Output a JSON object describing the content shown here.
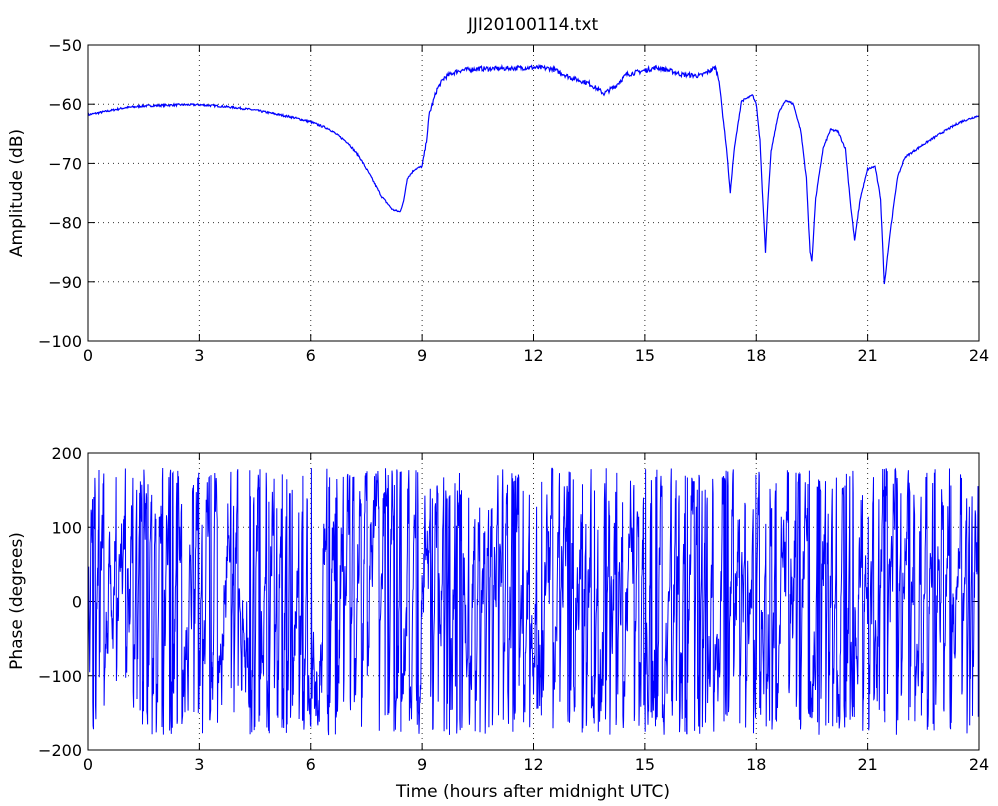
{
  "chart_data": [
    {
      "type": "line",
      "title": "JJI20100114.txt",
      "xlabel": "",
      "ylabel": "Amplitude (dB)",
      "xlim": [
        0,
        24
      ],
      "ylim": [
        -100,
        -50
      ],
      "xticks": [
        "0",
        "3",
        "6",
        "9",
        "12",
        "15",
        "18",
        "21",
        "24"
      ],
      "yticks": [
        "−50",
        "−60",
        "−70",
        "−80",
        "−90",
        "−100"
      ],
      "ytick_values": [
        -50,
        -60,
        -70,
        -80,
        -90,
        -100
      ],
      "grid": true,
      "line_color": "#0000ff",
      "series": [
        {
          "x": [
            0,
            0.5,
            1,
            1.5,
            2,
            2.5,
            3,
            3.5,
            4,
            4.5,
            5,
            5.5,
            6,
            6.5,
            7,
            7.3,
            7.6,
            7.9,
            8.2,
            8.4,
            8.5,
            8.6,
            8.8,
            9.0,
            9.1,
            9.2,
            9.4,
            9.6,
            9.8,
            10,
            10.5,
            11,
            11.5,
            12,
            12.5,
            13,
            13.5,
            13.9,
            14.2,
            14.5,
            15,
            15.3,
            15.6,
            16,
            16.5,
            16.7,
            16.9,
            17.0,
            17.1,
            17.2,
            17.3,
            17.4,
            17.6,
            17.9,
            18.0,
            18.1,
            18.2,
            18.25,
            18.3,
            18.4,
            18.6,
            18.8,
            19.0,
            19.2,
            19.35,
            19.45,
            19.5,
            19.6,
            19.8,
            20.0,
            20.2,
            20.4,
            20.55,
            20.65,
            20.8,
            21.0,
            21.2,
            21.35,
            21.45,
            21.6,
            21.8,
            22.0,
            22.5,
            23,
            23.5,
            24
          ],
          "y": [
            -61.8,
            -61.2,
            -60.6,
            -60.3,
            -60.2,
            -60.1,
            -60.1,
            -60.3,
            -60.6,
            -61.0,
            -61.6,
            -62.2,
            -63.0,
            -64.2,
            -66.5,
            -68.8,
            -72.0,
            -75.5,
            -77.8,
            -78.2,
            -76.5,
            -72.5,
            -71.0,
            -70.5,
            -67.0,
            -61.5,
            -57.5,
            -55.5,
            -54.8,
            -54.3,
            -54.0,
            -54.0,
            -53.9,
            -53.8,
            -54.0,
            -55.5,
            -56.5,
            -58.2,
            -57.0,
            -55.0,
            -54.3,
            -53.8,
            -54.2,
            -55.0,
            -55.2,
            -54.5,
            -53.8,
            -56.0,
            -62.0,
            -67.5,
            -75.0,
            -68.0,
            -59.5,
            -58.5,
            -60.0,
            -66.0,
            -79.0,
            -85.0,
            -78.0,
            -68.0,
            -61.5,
            -59.3,
            -60.0,
            -64.5,
            -72.5,
            -85.0,
            -86.5,
            -76.0,
            -67.5,
            -64.3,
            -64.6,
            -67.5,
            -77.5,
            -83.0,
            -76.0,
            -71.0,
            -70.5,
            -76.0,
            -90.5,
            -82.0,
            -72.5,
            -69.0,
            -66.8,
            -64.8,
            -63.0,
            -61.9
          ]
        }
      ]
    },
    {
      "type": "line",
      "title": "",
      "xlabel": "Time (hours after midnight UTC)",
      "ylabel": "Phase (degrees)",
      "xlim": [
        0,
        24
      ],
      "ylim": [
        -200,
        200
      ],
      "xticks": [
        "0",
        "3",
        "6",
        "9",
        "12",
        "15",
        "18",
        "21",
        "24"
      ],
      "yticks": [
        "200",
        "100",
        "0",
        "−100",
        "−200"
      ],
      "ytick_values": [
        200,
        100,
        0,
        -100,
        -200
      ],
      "grid": true,
      "line_color": "#0000ff",
      "note_series": "wrapped phase oscillating between -180 and 180 degrees throughout the day",
      "series": [
        {
          "x": [
            0,
            24
          ],
          "y_range": [
            -180,
            180
          ]
        }
      ]
    }
  ]
}
